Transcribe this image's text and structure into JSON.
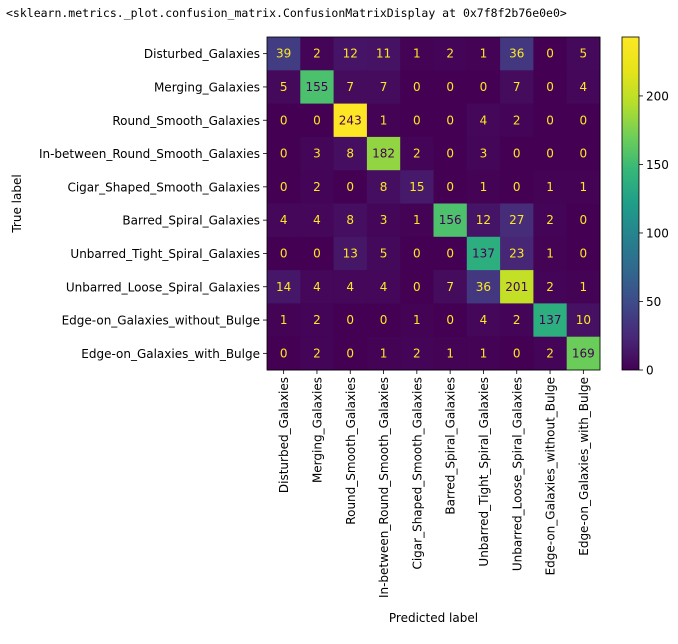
{
  "output_repr": "<sklearn.metrics._plot.confusion_matrix.ConfusionMatrixDisplay at 0x7f8f2b76e0e0>",
  "chart_data": {
    "type": "heatmap",
    "title": "",
    "xlabel": "Predicted label",
    "ylabel": "True label",
    "labels": [
      "Disturbed_Galaxies",
      "Merging_Galaxies",
      "Round_Smooth_Galaxies",
      "In-between_Round_Smooth_Galaxies",
      "Cigar_Shaped_Smooth_Galaxies",
      "Barred_Spiral_Galaxies",
      "Unbarred_Tight_Spiral_Galaxies",
      "Unbarred_Loose_Spiral_Galaxies",
      "Edge-on_Galaxies_without_Bulge",
      "Edge-on_Galaxies_with_Bulge"
    ],
    "matrix": [
      [
        39,
        2,
        12,
        11,
        1,
        2,
        1,
        36,
        0,
        5
      ],
      [
        5,
        155,
        7,
        7,
        0,
        0,
        0,
        7,
        0,
        4
      ],
      [
        0,
        0,
        243,
        1,
        0,
        0,
        4,
        2,
        0,
        0
      ],
      [
        0,
        3,
        8,
        182,
        2,
        0,
        3,
        0,
        0,
        0
      ],
      [
        0,
        2,
        0,
        8,
        15,
        0,
        1,
        0,
        1,
        1
      ],
      [
        4,
        4,
        8,
        3,
        1,
        156,
        12,
        27,
        2,
        0
      ],
      [
        0,
        0,
        13,
        5,
        0,
        0,
        137,
        23,
        1,
        0
      ],
      [
        14,
        4,
        4,
        4,
        0,
        7,
        36,
        201,
        2,
        1
      ],
      [
        1,
        2,
        0,
        0,
        1,
        0,
        4,
        2,
        137,
        10
      ],
      [
        0,
        2,
        0,
        1,
        2,
        1,
        1,
        0,
        2,
        169
      ]
    ],
    "colormap": "viridis",
    "value_range": [
      0,
      243
    ],
    "colorbar_ticks": [
      0,
      50,
      100,
      150,
      200
    ],
    "text_colors": {
      "dark_cell": "#fde725",
      "light_cell": "#440154"
    }
  }
}
